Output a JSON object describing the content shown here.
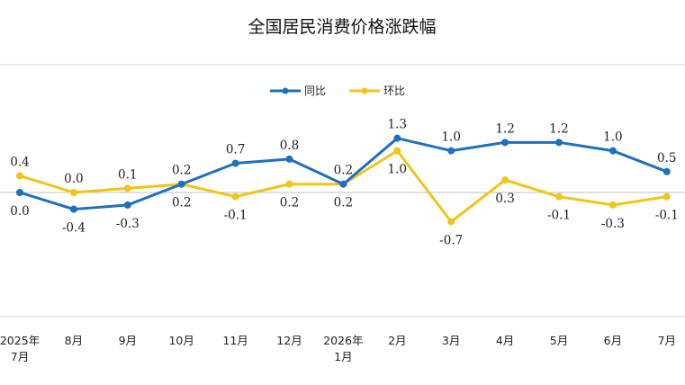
{
  "chart_data": {
    "type": "line",
    "title": "全国居民消费价格涨跌幅",
    "categories": [
      [
        "2025年",
        "7月"
      ],
      [
        "8月"
      ],
      [
        "9月"
      ],
      [
        "10月"
      ],
      [
        "11月"
      ],
      [
        "12月"
      ],
      [
        "2026年",
        "1月"
      ],
      [
        "2月"
      ],
      [
        "3月"
      ],
      [
        "4月"
      ],
      [
        "5月"
      ],
      [
        "6月"
      ],
      [
        "7月"
      ]
    ],
    "series": [
      {
        "name": "同比",
        "color": "#1f6fbe",
        "values": [
          0.0,
          -0.4,
          -0.3,
          0.2,
          0.7,
          0.8,
          0.2,
          1.3,
          1.0,
          1.2,
          1.2,
          1.0,
          0.5
        ],
        "labels": [
          "0.0",
          "-0.4",
          "-0.3",
          "0.2",
          "0.7",
          "0.8",
          "0.2",
          "1.3",
          "1.0",
          "1.2",
          "1.2",
          "1.0",
          "0.5"
        ]
      },
      {
        "name": "环比",
        "color": "#f0c419",
        "values": [
          0.4,
          0.0,
          0.1,
          0.2,
          -0.1,
          0.2,
          0.2,
          1.0,
          -0.7,
          0.3,
          -0.1,
          -0.3,
          -0.1
        ],
        "labels": [
          "0.4",
          "0.0",
          "0.1",
          "0.2",
          "-0.1",
          "0.2",
          "0.2",
          "1.0",
          "-0.7",
          "0.3",
          "-0.1",
          "-0.3",
          "-0.1"
        ]
      }
    ],
    "ylim": [
      -1.6,
      3.0
    ],
    "grid": false,
    "legend": "top-center"
  }
}
